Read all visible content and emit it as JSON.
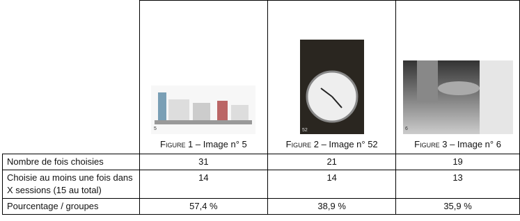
{
  "figures": [
    {
      "label": "Figure 1",
      "text": "– Image n° 5",
      "image_number": "5"
    },
    {
      "label": "Figure 2",
      "text": "– Image n° 52",
      "image_number": "52"
    },
    {
      "label": "Figure 3",
      "text": "– Image n° 6",
      "image_number": "6"
    }
  ],
  "rows": [
    {
      "label": "Nombre de fois choisies",
      "values": [
        "31",
        "21",
        "19"
      ]
    },
    {
      "label": "Choisie au moins une fois dans X sessions (15 au total)",
      "values": [
        "14",
        "14",
        "13"
      ]
    },
    {
      "label": "Pourcentage / groupes",
      "values": [
        "57,4 %",
        "38,9 %",
        "35,9 %"
      ]
    }
  ]
}
